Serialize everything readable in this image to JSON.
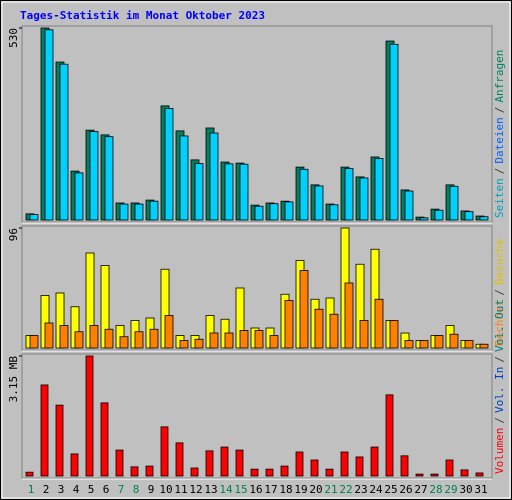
{
  "title": "Tages-Statistik im Monat Oktober 2023",
  "categories": [
    "1",
    "2",
    "3",
    "4",
    "5",
    "6",
    "7",
    "8",
    "9",
    "10",
    "11",
    "12",
    "13",
    "14",
    "15",
    "16",
    "17",
    "18",
    "19",
    "20",
    "21",
    "22",
    "23",
    "24",
    "25",
    "26",
    "27",
    "28",
    "29",
    "30",
    "31"
  ],
  "category_colors": [
    "#00804C",
    "#000000",
    "#000000",
    "#000000",
    "#000000",
    "#000000",
    "#00804C",
    "#00804C",
    "#000000",
    "#000000",
    "#000000",
    "#000000",
    "#000000",
    "#00804C",
    "#00804C",
    "#000000",
    "#000000",
    "#000000",
    "#000000",
    "#000000",
    "#00804C",
    "#00804C",
    "#000000",
    "#000000",
    "#000000",
    "#000000",
    "#000000",
    "#00804C",
    "#00804C",
    "#000000",
    "#000000"
  ],
  "legend_separator": "/",
  "chart_data": [
    {
      "type": "bar",
      "ylim": [
        0,
        530
      ],
      "yticks": [
        530
      ],
      "legend": [
        {
          "name": "Seiten",
          "color": "#00A0C0"
        },
        {
          "name": "Dateien",
          "color": "#0060FF"
        },
        {
          "name": "Anfragen",
          "color": "#008060"
        }
      ],
      "series": [
        {
          "color": "#008060",
          "values": [
            17,
            530,
            436,
            135,
            248,
            235,
            47,
            47,
            55,
            315,
            246,
            166,
            254,
            160,
            157,
            41,
            47,
            52,
            146,
            97,
            44,
            146,
            119,
            174,
            494,
            83,
            8,
            30,
            97,
            25,
            11
          ]
        },
        {
          "color": "#00D0FF",
          "values": [
            15,
            525,
            430,
            130,
            244,
            230,
            44,
            44,
            52,
            308,
            232,
            156,
            240,
            155,
            154,
            38,
            45,
            50,
            140,
            94,
            42,
            142,
            116,
            170,
            485,
            80,
            6,
            27,
            93,
            23,
            9
          ]
        }
      ]
    },
    {
      "type": "bar",
      "ylim": [
        0,
        96
      ],
      "yticks": [
        96
      ],
      "legend": [
        {
          "name": "Rechner",
          "color": "#FF8000"
        },
        {
          "name": "Besuche",
          "color": "#E0C000"
        }
      ],
      "series": [
        {
          "color": "#FFFF00",
          "values": [
            10,
            42,
            44,
            33,
            76,
            66,
            18,
            22,
            24,
            63,
            10,
            10,
            26,
            23,
            48,
            16,
            16,
            43,
            70,
            39,
            40,
            96,
            67,
            79,
            22,
            12,
            6,
            10,
            18,
            6,
            3
          ]
        },
        {
          "color": "#FF8000",
          "values": [
            10,
            20,
            18,
            13,
            18,
            15,
            9,
            13,
            15,
            26,
            6,
            7,
            12,
            12,
            14,
            14,
            10,
            38,
            62,
            31,
            27,
            52,
            22,
            39,
            22,
            6,
            6,
            10,
            11,
            6,
            3
          ]
        }
      ]
    },
    {
      "type": "bar",
      "ylim": [
        0,
        3.15
      ],
      "yticks": [
        {
          "value": 3.15,
          "label": "3.15 MB"
        }
      ],
      "legend": [
        {
          "name": "Volumen",
          "color": "#FF0000"
        },
        {
          "name": "Vol. In",
          "color": "#0040C0"
        },
        {
          "name": "Vol. Out",
          "color": "#008080"
        }
      ],
      "series": [
        {
          "color": "#FF0000",
          "values": [
            0.1,
            2.39,
            1.86,
            0.58,
            3.15,
            1.92,
            0.68,
            0.24,
            0.26,
            1.29,
            0.87,
            0.21,
            0.66,
            0.76,
            0.68,
            0.18,
            0.18,
            0.26,
            0.63,
            0.42,
            0.18,
            0.63,
            0.5,
            0.76,
            2.13,
            0.53,
            0.05,
            0.05,
            0.42,
            0.16,
            0.08
          ]
        }
      ]
    }
  ]
}
